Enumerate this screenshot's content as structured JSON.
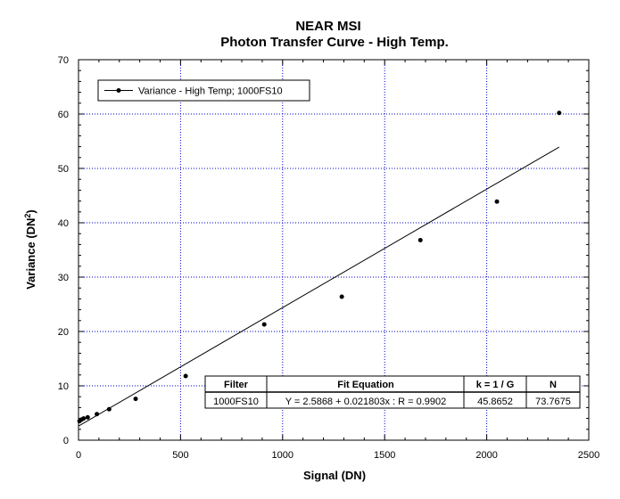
{
  "chart_data": {
    "type": "scatter",
    "title": "NEAR MSI",
    "subtitle": "Photon Transfer Curve - High Temp.",
    "xlabel": "Signal (DN)",
    "ylabel_main": "Variance (DN",
    "ylabel_sup": "2",
    "ylabel_close": ")",
    "xlim": [
      0,
      2500
    ],
    "ylim": [
      0,
      70
    ],
    "xticks": [
      0,
      500,
      1000,
      1500,
      2000,
      2500
    ],
    "yticks": [
      0,
      10,
      20,
      30,
      40,
      50,
      60,
      70
    ],
    "grid": true,
    "legend_position": "top-left",
    "series": [
      {
        "name": "Variance - High Temp; 1000FS10",
        "x": [
          5,
          15,
          25,
          45,
          90,
          150,
          280,
          525,
          910,
          1290,
          1675,
          2050,
          2355
        ],
        "y": [
          3.5,
          3.8,
          4.0,
          4.2,
          4.8,
          5.7,
          7.6,
          11.8,
          21.3,
          26.4,
          36.8,
          43.9,
          60.2
        ]
      }
    ],
    "fit": {
      "intercept": 2.5868,
      "slope": 0.021803,
      "x_range": [
        0,
        2355
      ]
    },
    "fit_table": {
      "headers": [
        "Filter",
        "Fit Equation",
        "k = 1 / G",
        "N"
      ],
      "row": [
        "1000FS10",
        "Y = 2.5868 + 0.021803x : R = 0.9902",
        "45.8652",
        "73.7675"
      ]
    },
    "colors": {
      "grid": "#0000cc",
      "frame": "#000000",
      "data": "#000000"
    }
  }
}
